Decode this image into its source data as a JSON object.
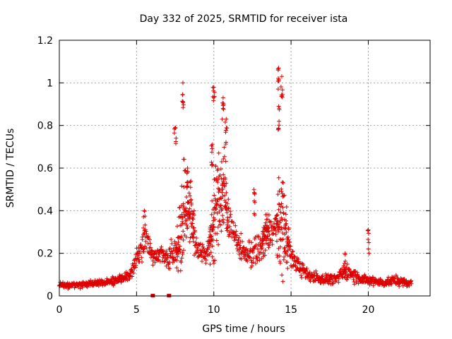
{
  "chart_data": {
    "type": "scatter",
    "title": "Day 332 of 2025, SRMTID for receiver ista",
    "xlabel": "GPS time / hours",
    "ylabel": "SRMTID / TECUs",
    "xlim": [
      0,
      24
    ],
    "ylim": [
      0,
      1.2
    ],
    "x_ticks": [
      0,
      5,
      10,
      15,
      20
    ],
    "x_tick_labels": [
      "0",
      "5",
      "10",
      "15",
      "20"
    ],
    "y_ticks": [
      0,
      0.2,
      0.4,
      0.6,
      0.8,
      1.0,
      1.2
    ],
    "y_tick_labels": [
      "0",
      "0.2",
      "0.4",
      "0.6",
      "0.8",
      "1",
      "1.2"
    ],
    "grid": true,
    "marker": "+",
    "color": "#dd0000",
    "data_gap_markers": [
      6.05,
      7.1
    ],
    "series": [
      {
        "name": "SRMTID",
        "envelope": {
          "x": [
            0.0,
            0.5,
            1.0,
            2.0,
            3.0,
            4.0,
            4.5,
            4.8,
            5.0,
            5.3,
            5.6,
            6.0,
            6.5,
            7.0,
            7.5,
            7.8,
            8.0,
            8.2,
            8.5,
            8.8,
            9.0,
            9.5,
            9.8,
            10.0,
            10.3,
            10.6,
            10.8,
            11.0,
            11.5,
            12.0,
            12.5,
            13.0,
            13.3,
            13.6,
            14.0,
            14.3,
            14.5,
            14.7,
            15.0,
            15.5,
            16.0,
            16.5,
            17.0,
            17.5,
            18.0,
            18.5,
            19.0,
            19.5,
            20.0,
            20.5,
            21.0,
            21.5,
            22.0,
            22.5,
            22.8
          ],
          "center": [
            0.05,
            0.05,
            0.05,
            0.06,
            0.06,
            0.08,
            0.09,
            0.14,
            0.18,
            0.22,
            0.3,
            0.18,
            0.2,
            0.18,
            0.2,
            0.28,
            0.38,
            0.42,
            0.4,
            0.25,
            0.22,
            0.2,
            0.25,
            0.4,
            0.45,
            0.5,
            0.45,
            0.35,
            0.25,
            0.2,
            0.2,
            0.22,
            0.28,
            0.3,
            0.32,
            0.35,
            0.35,
            0.3,
            0.18,
            0.14,
            0.1,
            0.09,
            0.08,
            0.08,
            0.08,
            0.12,
            0.1,
            0.08,
            0.07,
            0.07,
            0.06,
            0.07,
            0.07,
            0.06,
            0.06
          ],
          "spread": [
            0.02,
            0.02,
            0.02,
            0.02,
            0.02,
            0.03,
            0.04,
            0.05,
            0.06,
            0.1,
            0.08,
            0.06,
            0.05,
            0.06,
            0.1,
            0.2,
            0.28,
            0.3,
            0.2,
            0.1,
            0.08,
            0.06,
            0.15,
            0.28,
            0.3,
            0.28,
            0.25,
            0.1,
            0.08,
            0.06,
            0.1,
            0.1,
            0.15,
            0.12,
            0.1,
            0.3,
            0.35,
            0.2,
            0.06,
            0.05,
            0.04,
            0.04,
            0.03,
            0.03,
            0.03,
            0.05,
            0.05,
            0.03,
            0.03,
            0.03,
            0.02,
            0.03,
            0.03,
            0.02,
            0.02
          ]
        },
        "peaks": [
          {
            "x": 5.5,
            "y": 0.4
          },
          {
            "x": 7.5,
            "y": 0.79
          },
          {
            "x": 8.0,
            "y": 1.0
          },
          {
            "x": 8.3,
            "y": 0.6
          },
          {
            "x": 9.9,
            "y": 0.71
          },
          {
            "x": 10.0,
            "y": 0.98
          },
          {
            "x": 10.6,
            "y": 0.93
          },
          {
            "x": 10.8,
            "y": 0.83
          },
          {
            "x": 12.6,
            "y": 0.5
          },
          {
            "x": 14.2,
            "y": 1.07
          },
          {
            "x": 14.4,
            "y": 1.03
          },
          {
            "x": 14.2,
            "y": 0.89
          },
          {
            "x": 20.0,
            "y": 0.31
          },
          {
            "x": 18.5,
            "y": 0.2
          }
        ]
      }
    ]
  }
}
